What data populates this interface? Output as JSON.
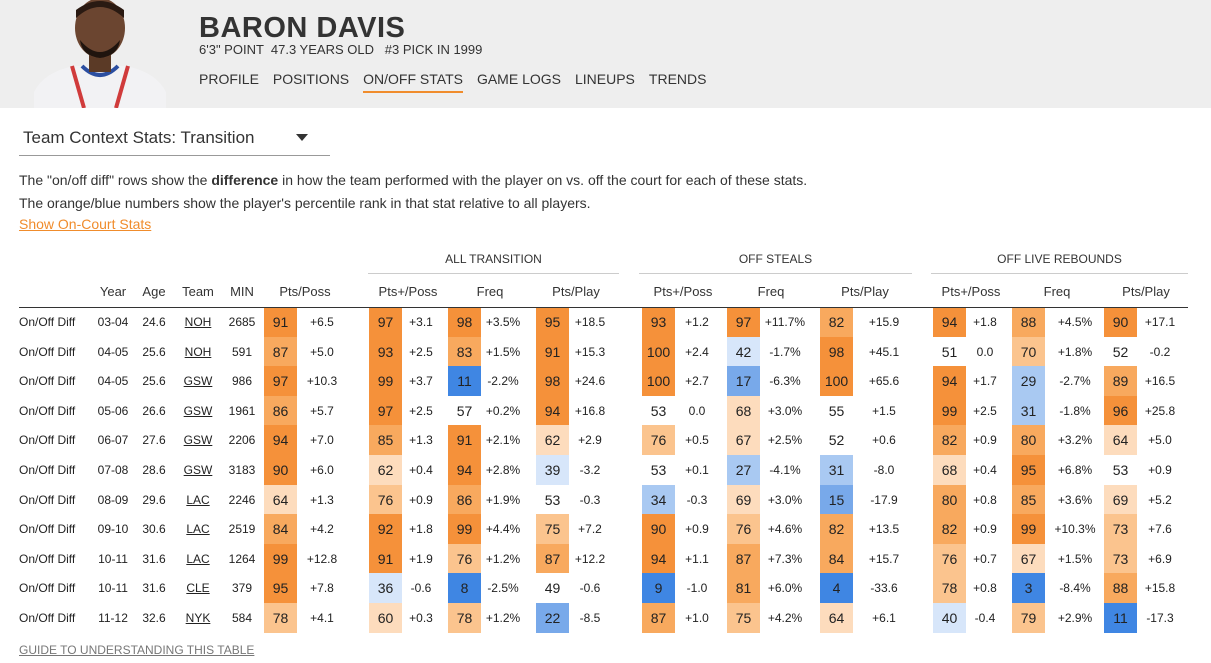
{
  "player": {
    "name": "BARON DAVIS",
    "subline": "6'3\" POINT  47.3 YEARS OLD   #3 PICK IN 1999"
  },
  "nav": [
    {
      "label": "PROFILE",
      "active": false
    },
    {
      "label": "POSITIONS",
      "active": false
    },
    {
      "label": "ON/OFF STATS",
      "active": true
    },
    {
      "label": "GAME LOGS",
      "active": false
    },
    {
      "label": "LINEUPS",
      "active": false
    },
    {
      "label": "TRENDS",
      "active": false
    }
  ],
  "selector": {
    "label": "Team Context Stats: Transition"
  },
  "description": {
    "line1_pre": "The \"on/off diff\" rows show the ",
    "line1_bold": "difference",
    "line1_post": " in how the team performed with the player on vs. off the court for each of these stats.",
    "line2": "The orange/blue numbers show the player's percentile rank in that stat relative to all players."
  },
  "show_link": "Show On-Court Stats",
  "guide_link": "GUIDE TO UNDERSTANDING THIS TABLE",
  "table": {
    "groups": [
      "ALL TRANSITION",
      "OFF STEALS",
      "OFF LIVE REBOUNDS"
    ],
    "columns": [
      "Year",
      "Age",
      "Team",
      "MIN",
      "Pts/Poss",
      "Pts+/Poss",
      "Freq",
      "Pts/Play",
      "Pts+/Poss",
      "Freq",
      "Pts/Play",
      "Pts+/Poss",
      "Freq",
      "Pts/Play"
    ],
    "rows": [
      {
        "label": "On/Off Diff",
        "year": "03-04",
        "age": "24.6",
        "team": "NOH",
        "min": "2685",
        "stats": [
          [
            91,
            "+6.5"
          ],
          [
            97,
            "+3.1"
          ],
          [
            98,
            "+3.5%"
          ],
          [
            95,
            "+18.5"
          ],
          [
            93,
            "+1.2"
          ],
          [
            97,
            "+11.7%"
          ],
          [
            82,
            "+15.9"
          ],
          [
            94,
            "+1.8"
          ],
          [
            88,
            "+4.5%"
          ],
          [
            90,
            "+17.1"
          ]
        ]
      },
      {
        "label": "On/Off Diff",
        "year": "04-05",
        "age": "25.6",
        "team": "NOH",
        "min": "591",
        "stats": [
          [
            87,
            "+5.0"
          ],
          [
            93,
            "+2.5"
          ],
          [
            83,
            "+1.5%"
          ],
          [
            91,
            "+15.3"
          ],
          [
            100,
            "+2.4"
          ],
          [
            42,
            "-1.7%"
          ],
          [
            98,
            "+45.1"
          ],
          [
            51,
            "0.0"
          ],
          [
            70,
            "+1.8%"
          ],
          [
            52,
            "-0.2"
          ]
        ]
      },
      {
        "label": "On/Off Diff",
        "year": "04-05",
        "age": "25.6",
        "team": "GSW",
        "min": "986",
        "stats": [
          [
            97,
            "+10.3"
          ],
          [
            99,
            "+3.7"
          ],
          [
            11,
            "-2.2%"
          ],
          [
            98,
            "+24.6"
          ],
          [
            100,
            "+2.7"
          ],
          [
            17,
            "-6.3%"
          ],
          [
            100,
            "+65.6"
          ],
          [
            94,
            "+1.7"
          ],
          [
            29,
            "-2.7%"
          ],
          [
            89,
            "+16.5"
          ]
        ]
      },
      {
        "label": "On/Off Diff",
        "year": "05-06",
        "age": "26.6",
        "team": "GSW",
        "min": "1961",
        "stats": [
          [
            86,
            "+5.7"
          ],
          [
            97,
            "+2.5"
          ],
          [
            57,
            "+0.2%"
          ],
          [
            94,
            "+16.8"
          ],
          [
            53,
            "0.0"
          ],
          [
            68,
            "+3.0%"
          ],
          [
            55,
            "+1.5"
          ],
          [
            99,
            "+2.5"
          ],
          [
            31,
            "-1.8%"
          ],
          [
            96,
            "+25.8"
          ]
        ]
      },
      {
        "label": "On/Off Diff",
        "year": "06-07",
        "age": "27.6",
        "team": "GSW",
        "min": "2206",
        "stats": [
          [
            94,
            "+7.0"
          ],
          [
            85,
            "+1.3"
          ],
          [
            91,
            "+2.1%"
          ],
          [
            62,
            "+2.9"
          ],
          [
            76,
            "+0.5"
          ],
          [
            67,
            "+2.5%"
          ],
          [
            52,
            "+0.6"
          ],
          [
            82,
            "+0.9"
          ],
          [
            80,
            "+3.2%"
          ],
          [
            64,
            "+5.0"
          ]
        ]
      },
      {
        "label": "On/Off Diff",
        "year": "07-08",
        "age": "28.6",
        "team": "GSW",
        "min": "3183",
        "stats": [
          [
            90,
            "+6.0"
          ],
          [
            62,
            "+0.4"
          ],
          [
            94,
            "+2.8%"
          ],
          [
            39,
            "-3.2"
          ],
          [
            53,
            "+0.1"
          ],
          [
            27,
            "-4.1%"
          ],
          [
            31,
            "-8.0"
          ],
          [
            68,
            "+0.4"
          ],
          [
            95,
            "+6.8%"
          ],
          [
            53,
            "+0.9"
          ]
        ]
      },
      {
        "label": "On/Off Diff",
        "year": "08-09",
        "age": "29.6",
        "team": "LAC",
        "min": "2246",
        "stats": [
          [
            64,
            "+1.3"
          ],
          [
            76,
            "+0.9"
          ],
          [
            86,
            "+1.9%"
          ],
          [
            53,
            "-0.3"
          ],
          [
            34,
            "-0.3"
          ],
          [
            69,
            "+3.0%"
          ],
          [
            15,
            "-17.9"
          ],
          [
            80,
            "+0.8"
          ],
          [
            85,
            "+3.6%"
          ],
          [
            69,
            "+5.2"
          ]
        ]
      },
      {
        "label": "On/Off Diff",
        "year": "09-10",
        "age": "30.6",
        "team": "LAC",
        "min": "2519",
        "stats": [
          [
            84,
            "+4.2"
          ],
          [
            92,
            "+1.8"
          ],
          [
            99,
            "+4.4%"
          ],
          [
            75,
            "+7.2"
          ],
          [
            90,
            "+0.9"
          ],
          [
            76,
            "+4.6%"
          ],
          [
            82,
            "+13.5"
          ],
          [
            82,
            "+0.9"
          ],
          [
            99,
            "+10.3%"
          ],
          [
            73,
            "+7.6"
          ]
        ]
      },
      {
        "label": "On/Off Diff",
        "year": "10-11",
        "age": "31.6",
        "team": "LAC",
        "min": "1264",
        "stats": [
          [
            99,
            "+12.8"
          ],
          [
            91,
            "+1.9"
          ],
          [
            76,
            "+1.2%"
          ],
          [
            87,
            "+12.2"
          ],
          [
            94,
            "+1.1"
          ],
          [
            87,
            "+7.3%"
          ],
          [
            84,
            "+15.7"
          ],
          [
            76,
            "+0.7"
          ],
          [
            67,
            "+1.5%"
          ],
          [
            73,
            "+6.9"
          ]
        ]
      },
      {
        "label": "On/Off Diff",
        "year": "10-11",
        "age": "31.6",
        "team": "CLE",
        "min": "379",
        "stats": [
          [
            95,
            "+7.8"
          ],
          [
            36,
            "-0.6"
          ],
          [
            8,
            "-2.5%"
          ],
          [
            49,
            "-0.6"
          ],
          [
            9,
            "-1.0"
          ],
          [
            81,
            "+6.0%"
          ],
          [
            4,
            "-33.6"
          ],
          [
            78,
            "+0.8"
          ],
          [
            3,
            "-8.4%"
          ],
          [
            88,
            "+15.8"
          ]
        ]
      },
      {
        "label": "On/Off Diff",
        "year": "11-12",
        "age": "32.6",
        "team": "NYK",
        "min": "584",
        "stats": [
          [
            78,
            "+4.1"
          ],
          [
            60,
            "+0.3"
          ],
          [
            78,
            "+1.2%"
          ],
          [
            22,
            "-8.5"
          ],
          [
            87,
            "+1.0"
          ],
          [
            75,
            "+4.2%"
          ],
          [
            64,
            "+6.1"
          ],
          [
            40,
            "-0.4"
          ],
          [
            79,
            "+2.9%"
          ],
          [
            11,
            "-17.3"
          ]
        ]
      }
    ]
  }
}
